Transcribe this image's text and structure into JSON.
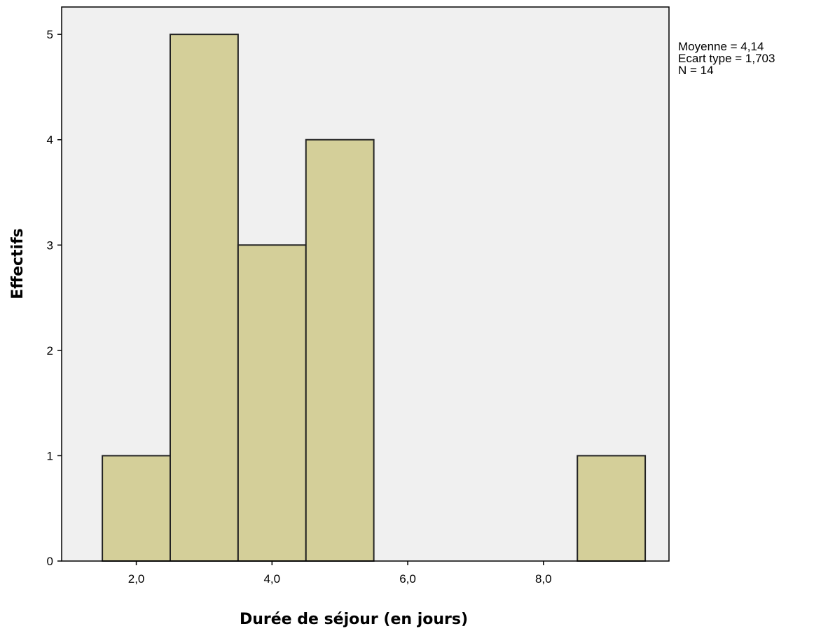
{
  "chart_data": {
    "type": "bar",
    "subtype": "histogram",
    "xlabel": "Durée de séjour (en jours)",
    "ylabel": "Effectifs",
    "xlim": [
      0.9,
      9.85
    ],
    "ylim": [
      0,
      5.26
    ],
    "x_ticks": [
      2,
      4,
      6,
      8
    ],
    "x_tick_labels": [
      "2,0",
      "4,0",
      "6,0",
      "8,0"
    ],
    "y_ticks": [
      0,
      1,
      2,
      3,
      4,
      5
    ],
    "y_tick_labels": [
      "0",
      "1",
      "2",
      "3",
      "4",
      "5"
    ],
    "bins": [
      {
        "x_start": 1.5,
        "x_end": 2.5,
        "count": 1
      },
      {
        "x_start": 2.5,
        "x_end": 3.5,
        "count": 5
      },
      {
        "x_start": 3.5,
        "x_end": 4.5,
        "count": 3
      },
      {
        "x_start": 4.5,
        "x_end": 5.5,
        "count": 4
      },
      {
        "x_start": 5.5,
        "x_end": 6.5,
        "count": 0
      },
      {
        "x_start": 6.5,
        "x_end": 7.5,
        "count": 0
      },
      {
        "x_start": 7.5,
        "x_end": 8.5,
        "count": 0
      },
      {
        "x_start": 8.5,
        "x_end": 9.5,
        "count": 1
      }
    ],
    "stats": [
      "Moyenne = 4,14",
      "Ecart type = 1,703",
      "N = 14"
    ],
    "legend_position": "top-right",
    "grid": false,
    "colors": {
      "bar_fill": "#d4cf99",
      "bar_stroke": "#222222",
      "plot_background": "#f0f0f0",
      "frame": "#000000"
    }
  }
}
